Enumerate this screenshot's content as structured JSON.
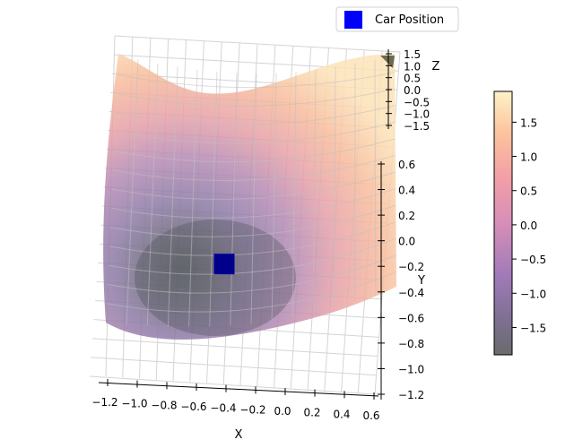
{
  "legend": {
    "label": "Car Position",
    "marker_color": "#0000ff"
  },
  "colorbar": {
    "colormap": "magma",
    "alpha": 0.5,
    "range": [
      -1.9,
      1.95
    ],
    "ticks": [
      {
        "value": 1.5,
        "label": "1.5"
      },
      {
        "value": 1.0,
        "label": "1.0"
      },
      {
        "value": 0.5,
        "label": "0.5"
      },
      {
        "value": 0.0,
        "label": "0.0"
      },
      {
        "value": -0.5,
        "label": "−0.5"
      },
      {
        "value": -1.0,
        "label": "−1.0"
      },
      {
        "value": -1.5,
        "label": "−1.5"
      }
    ]
  },
  "chart_data": {
    "type": "surface",
    "xlabel": "X",
    "ylabel": "Y",
    "zlabel": "Z",
    "xlim": [
      -1.2,
      0.6
    ],
    "ylim": [
      -1.2,
      0.6
    ],
    "zlim": [
      -1.5,
      1.5
    ],
    "x_ticks": [
      {
        "value": -1.2,
        "label": "−1.2"
      },
      {
        "value": -1.0,
        "label": "−1.0"
      },
      {
        "value": -0.8,
        "label": "−0.8"
      },
      {
        "value": -0.6,
        "label": "−0.6"
      },
      {
        "value": -0.4,
        "label": "−0.4"
      },
      {
        "value": -0.2,
        "label": "−0.2"
      },
      {
        "value": 0.0,
        "label": "0.0"
      },
      {
        "value": 0.2,
        "label": "0.2"
      },
      {
        "value": 0.4,
        "label": "0.4"
      },
      {
        "value": 0.6,
        "label": "0.6"
      }
    ],
    "y_ticks": [
      {
        "value": 0.6,
        "label": "0.6"
      },
      {
        "value": 0.4,
        "label": "0.4"
      },
      {
        "value": 0.2,
        "label": "0.2"
      },
      {
        "value": 0.0,
        "label": "0.0"
      },
      {
        "value": -0.2,
        "label": "−0.2"
      },
      {
        "value": -0.4,
        "label": "−0.4"
      },
      {
        "value": -0.6,
        "label": "−0.6"
      },
      {
        "value": -0.8,
        "label": "−0.8"
      },
      {
        "value": -1.0,
        "label": "−1.0"
      },
      {
        "value": -1.2,
        "label": "−1.2"
      }
    ],
    "z_ticks": [
      {
        "value": 1.5,
        "label": "1.5"
      },
      {
        "value": 1.0,
        "label": "1.0"
      },
      {
        "value": 0.5,
        "label": "0.5"
      },
      {
        "value": 0.0,
        "label": "0.0"
      },
      {
        "value": -0.5,
        "label": "−0.5"
      },
      {
        "value": -1.0,
        "label": "−1.0"
      },
      {
        "value": -1.5,
        "label": "−1.5"
      }
    ],
    "car_position": {
      "x": -0.45,
      "y": -0.33,
      "color": "#0000ff"
    },
    "grid": true
  }
}
